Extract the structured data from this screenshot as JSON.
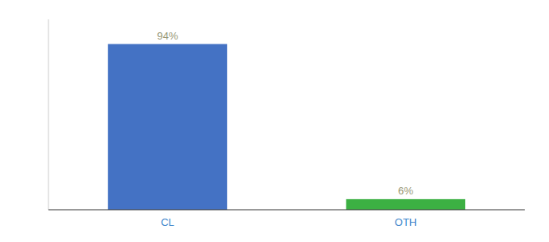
{
  "chart_data": {
    "type": "bar",
    "categories": [
      "CL",
      "OTH"
    ],
    "values": [
      94,
      6
    ],
    "value_labels": [
      "94%",
      "6%"
    ],
    "colors": [
      "#4472c4",
      "#3cb043"
    ],
    "ylim": [
      0,
      108
    ],
    "data_labels": true,
    "tick_labels": "x",
    "grid": false
  }
}
